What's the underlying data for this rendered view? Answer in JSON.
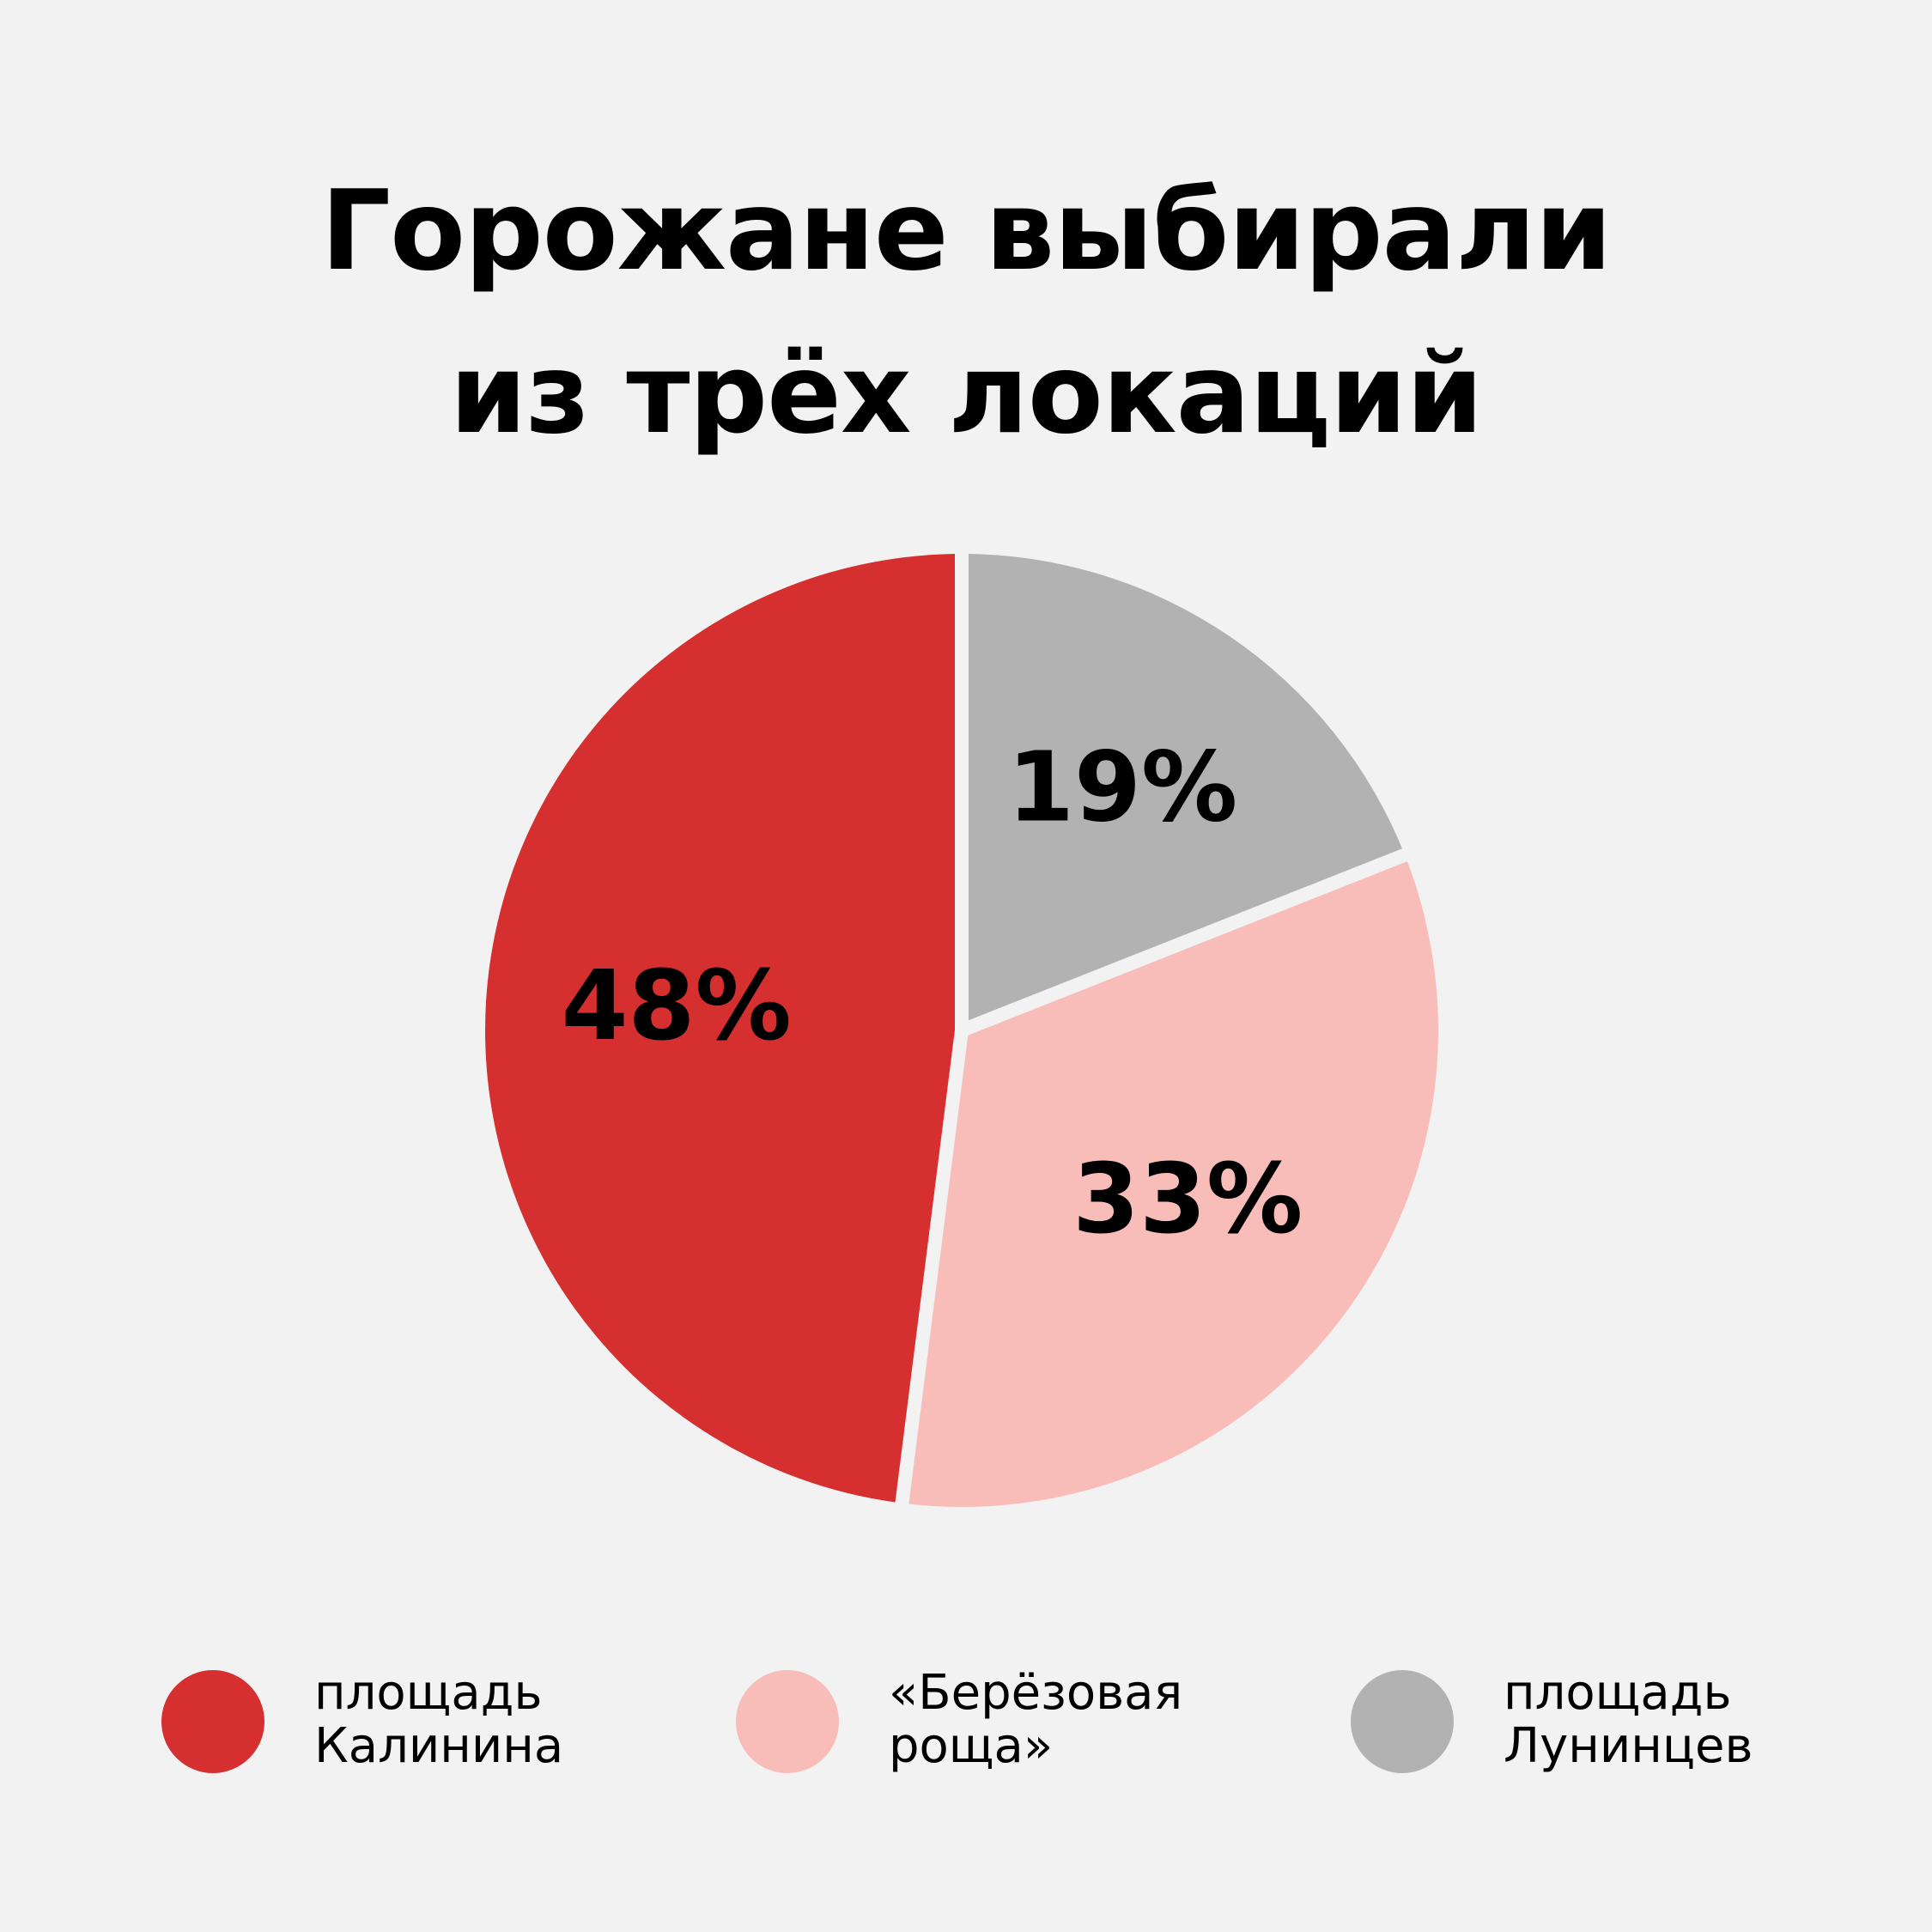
{
  "title_lines": [
    "Горожане выбирали",
    "из трёх локаций"
  ],
  "colors": {
    "background": "#f2f2f2",
    "text": "#000000",
    "separator": "#f2f2f2"
  },
  "chart_data": {
    "type": "pie",
    "title": "Горожане выбирали из трёх локаций",
    "unit": "%",
    "slices": [
      {
        "label": "площадь Калинина",
        "label_lines": [
          "площадь",
          "Калинина"
        ],
        "value": 48,
        "display": "48%",
        "color": "#d62f2f"
      },
      {
        "label": "«Берёзовая роща»",
        "label_lines": [
          "«Берёзовая",
          "роща»"
        ],
        "value": 33,
        "display": "33%",
        "color": "#f9bdb9"
      },
      {
        "label": "площадь Лунинцев",
        "label_lines": [
          "площадь",
          "Лунинцев"
        ],
        "value": 19,
        "display": "19%",
        "color": "#b2b2b2"
      }
    ],
    "legend_position": "bottom"
  }
}
